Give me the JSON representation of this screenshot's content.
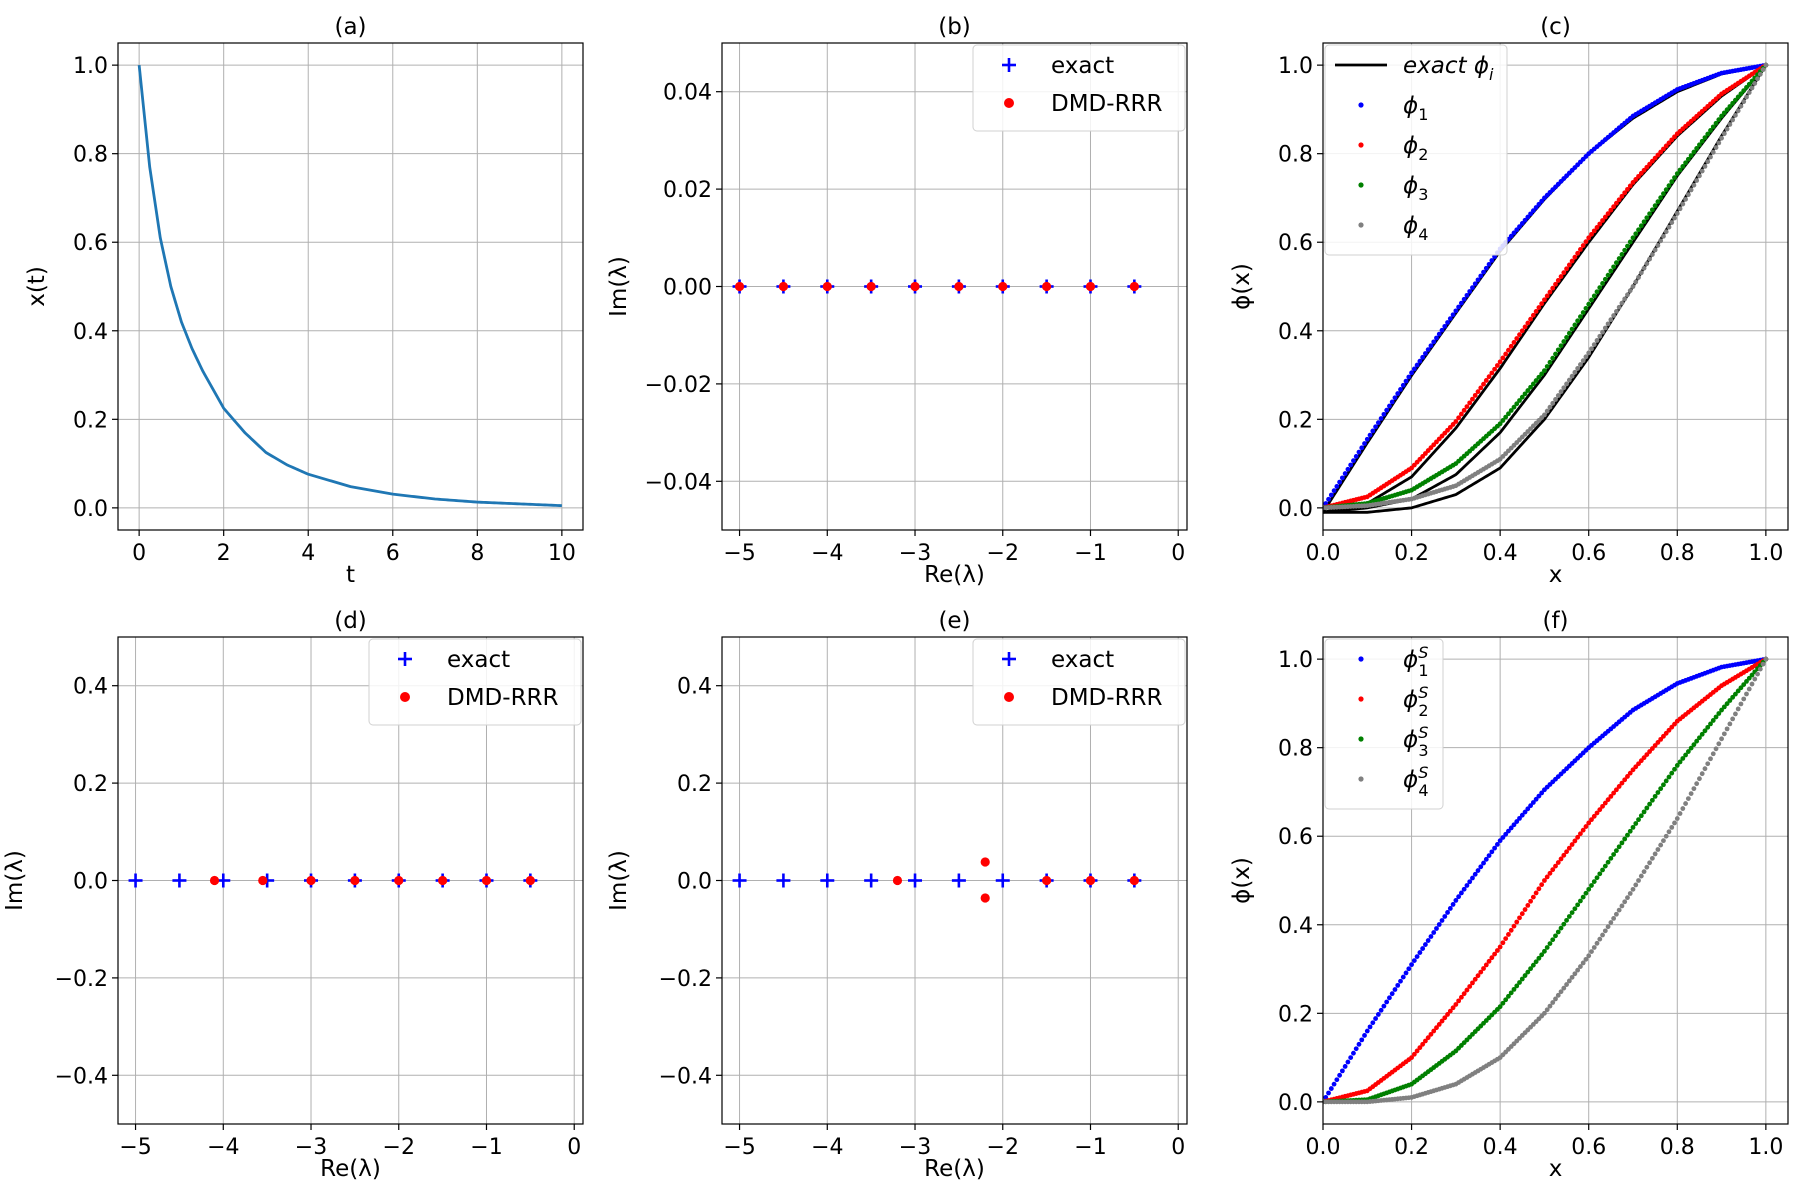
{
  "figure": {
    "colors": {
      "blue": "#0000ff",
      "red": "#ff0000",
      "green": "#008000",
      "gray": "#808080",
      "black": "#000000",
      "line": "#1f77b4"
    }
  },
  "chart_data": [
    {
      "id": "a",
      "type": "line",
      "title": "(a)",
      "xlabel": "t",
      "ylabel": "x(t)",
      "xlim": [
        -0.5,
        10.5
      ],
      "ylim": [
        -0.05,
        1.05
      ],
      "xticks": [
        0,
        2,
        4,
        6,
        8,
        10
      ],
      "xtick_labels": [
        "0",
        "2",
        "4",
        "6",
        "8",
        "10"
      ],
      "yticks": [
        0.0,
        0.2,
        0.4,
        0.6,
        0.8,
        1.0
      ],
      "ytick_labels": [
        "0.0",
        "0.2",
        "0.4",
        "0.6",
        "0.8",
        "1.0"
      ],
      "series": [
        {
          "name": "x(t)",
          "x": [
            0,
            0.25,
            0.5,
            0.75,
            1,
            1.25,
            1.5,
            2,
            2.5,
            3,
            3.5,
            4,
            5,
            6,
            7,
            8,
            9,
            10
          ],
          "y": [
            1.0,
            0.77,
            0.61,
            0.5,
            0.42,
            0.36,
            0.31,
            0.225,
            0.17,
            0.125,
            0.097,
            0.076,
            0.048,
            0.031,
            0.02,
            0.013,
            0.009,
            0.005
          ],
          "color": "#1f77b4"
        }
      ]
    },
    {
      "id": "b",
      "type": "scatter",
      "title": "(b)",
      "xlabel": "Re(λ)",
      "ylabel": "Im(λ)",
      "xlim": [
        -5.2,
        0.1
      ],
      "ylim": [
        -0.05,
        0.05
      ],
      "xticks": [
        -5,
        -4,
        -3,
        -2,
        -1,
        0
      ],
      "xtick_labels": [
        "−5",
        "−4",
        "−3",
        "−2",
        "−1",
        "0"
      ],
      "yticks": [
        -0.04,
        -0.02,
        0.0,
        0.02,
        0.04
      ],
      "ytick_labels": [
        "−0.04",
        "−0.02",
        "0.00",
        "0.02",
        "0.04"
      ],
      "legend": {
        "position": "top-right",
        "entries": [
          {
            "label": "exact",
            "marker": "plus",
            "color": "#0000ff"
          },
          {
            "label": "DMD-RRR",
            "marker": "dot",
            "color": "#ff0000"
          }
        ]
      },
      "series": [
        {
          "name": "exact",
          "marker": "plus",
          "color": "#0000ff",
          "x": [
            -5,
            -4.5,
            -4,
            -3.5,
            -3,
            -2.5,
            -2,
            -1.5,
            -1,
            -0.5
          ],
          "y": [
            0,
            0,
            0,
            0,
            0,
            0,
            0,
            0,
            0,
            0
          ]
        },
        {
          "name": "DMD-RRR",
          "marker": "dot",
          "color": "#ff0000",
          "x": [
            -5,
            -4.5,
            -4,
            -3.5,
            -3,
            -2.5,
            -2,
            -1.5,
            -1,
            -0.5
          ],
          "y": [
            0,
            0,
            0,
            0,
            0,
            0,
            0,
            0,
            0,
            0
          ]
        }
      ]
    },
    {
      "id": "c",
      "type": "line",
      "title": "(c)",
      "xlabel": "x",
      "ylabel": "ϕ(x)",
      "xlim": [
        0.0,
        1.05
      ],
      "ylim": [
        -0.05,
        1.05
      ],
      "xticks": [
        0.0,
        0.2,
        0.4,
        0.6,
        0.8,
        1.0
      ],
      "xtick_labels": [
        "0.0",
        "0.2",
        "0.4",
        "0.6",
        "0.8",
        "1.0"
      ],
      "yticks": [
        0.0,
        0.2,
        0.4,
        0.6,
        0.8,
        1.0
      ],
      "ytick_labels": [
        "0.0",
        "0.2",
        "0.4",
        "0.6",
        "0.8",
        "1.0"
      ],
      "legend": {
        "position": "top-left",
        "entries": [
          {
            "label": "exact ϕ",
            "sub": "i",
            "sup": "",
            "marker": "line",
            "color": "#000000"
          },
          {
            "label": "ϕ",
            "sub": "1",
            "sup": "",
            "marker": "dot",
            "color": "#0000ff"
          },
          {
            "label": "ϕ",
            "sub": "2",
            "sup": "",
            "marker": "dot",
            "color": "#ff0000"
          },
          {
            "label": "ϕ",
            "sub": "3",
            "sup": "",
            "marker": "dot",
            "color": "#008000"
          },
          {
            "label": "ϕ",
            "sub": "4",
            "sup": "",
            "marker": "dot",
            "color": "#808080"
          }
        ]
      },
      "series": [
        {
          "name": "exact φ1",
          "kind": "line",
          "color": "#000000",
          "x": [
            0,
            0.1,
            0.2,
            0.3,
            0.4,
            0.5,
            0.6,
            0.7,
            0.8,
            0.9,
            1.0
          ],
          "y": [
            -0.01,
            0.147,
            0.299,
            0.44,
            0.58,
            0.697,
            0.8,
            0.88,
            0.94,
            0.98,
            1.0
          ]
        },
        {
          "name": "exact φ2",
          "kind": "line",
          "color": "#000000",
          "x": [
            0,
            0.1,
            0.2,
            0.3,
            0.4,
            0.5,
            0.6,
            0.7,
            0.8,
            0.9,
            1.0
          ],
          "y": [
            -0.01,
            0.01,
            0.07,
            0.18,
            0.315,
            0.462,
            0.6,
            0.73,
            0.84,
            0.93,
            1.0
          ]
        },
        {
          "name": "exact φ3",
          "kind": "line",
          "color": "#000000",
          "x": [
            0,
            0.1,
            0.2,
            0.3,
            0.4,
            0.5,
            0.6,
            0.7,
            0.8,
            0.9,
            1.0
          ],
          "y": [
            -0.01,
            0.0,
            0.02,
            0.075,
            0.17,
            0.3,
            0.45,
            0.6,
            0.75,
            0.88,
            1.0
          ]
        },
        {
          "name": "exact φ4",
          "kind": "line",
          "color": "#000000",
          "x": [
            0,
            0.1,
            0.2,
            0.3,
            0.4,
            0.5,
            0.6,
            0.7,
            0.8,
            0.9,
            1.0
          ],
          "y": [
            -0.01,
            -0.01,
            0.0,
            0.03,
            0.09,
            0.2,
            0.34,
            0.5,
            0.67,
            0.84,
            1.0
          ]
        },
        {
          "name": "ϕ1",
          "kind": "dots",
          "color": "#0000ff",
          "x": [
            0,
            0.1,
            0.2,
            0.3,
            0.4,
            0.5,
            0.6,
            0.7,
            0.8,
            0.9,
            1.0
          ],
          "y": [
            0.0,
            0.155,
            0.305,
            0.445,
            0.585,
            0.7,
            0.8,
            0.885,
            0.945,
            0.982,
            1.0
          ]
        },
        {
          "name": "ϕ2",
          "kind": "dots",
          "color": "#ff0000",
          "x": [
            0,
            0.1,
            0.2,
            0.3,
            0.4,
            0.5,
            0.6,
            0.7,
            0.8,
            0.9,
            1.0
          ],
          "y": [
            0.0,
            0.025,
            0.09,
            0.195,
            0.33,
            0.47,
            0.61,
            0.735,
            0.845,
            0.935,
            1.0
          ]
        },
        {
          "name": "ϕ3",
          "kind": "dots",
          "color": "#008000",
          "x": [
            0,
            0.1,
            0.2,
            0.3,
            0.4,
            0.5,
            0.6,
            0.7,
            0.8,
            0.9,
            1.0
          ],
          "y": [
            0.0,
            0.01,
            0.04,
            0.1,
            0.19,
            0.31,
            0.46,
            0.61,
            0.755,
            0.885,
            1.0
          ]
        },
        {
          "name": "ϕ4",
          "kind": "dots",
          "color": "#808080",
          "x": [
            0,
            0.1,
            0.2,
            0.3,
            0.4,
            0.5,
            0.6,
            0.7,
            0.8,
            0.9,
            1.0
          ],
          "y": [
            0.0,
            0.005,
            0.02,
            0.05,
            0.11,
            0.21,
            0.35,
            0.5,
            0.665,
            0.835,
            1.0
          ]
        }
      ]
    },
    {
      "id": "d",
      "type": "scatter",
      "title": "(d)",
      "xlabel": "Re(λ)",
      "ylabel": "Im(λ)",
      "xlim": [
        -5.2,
        0.1
      ],
      "ylim": [
        -0.5,
        0.5
      ],
      "xticks": [
        -5,
        -4,
        -3,
        -2,
        -1,
        0
      ],
      "xtick_labels": [
        "−5",
        "−4",
        "−3",
        "−2",
        "−1",
        "0"
      ],
      "yticks": [
        -0.4,
        -0.2,
        0.0,
        0.2,
        0.4
      ],
      "ytick_labels": [
        "−0.4",
        "−0.2",
        "0.0",
        "0.2",
        "0.4"
      ],
      "legend": {
        "position": "top-right",
        "entries": [
          {
            "label": "exact",
            "marker": "plus",
            "color": "#0000ff"
          },
          {
            "label": "DMD-RRR",
            "marker": "dot",
            "color": "#ff0000"
          }
        ]
      },
      "series": [
        {
          "name": "exact",
          "marker": "plus",
          "color": "#0000ff",
          "x": [
            -5,
            -4.5,
            -4,
            -3.5,
            -3,
            -2.5,
            -2,
            -1.5,
            -1,
            -0.5
          ],
          "y": [
            0,
            0,
            0,
            0,
            0,
            0,
            0,
            0,
            0,
            0
          ]
        },
        {
          "name": "DMD-RRR",
          "marker": "dot",
          "color": "#ff0000",
          "x": [
            -4.1,
            -3.55,
            -3,
            -2.5,
            -2,
            -1.5,
            -1,
            -0.5
          ],
          "y": [
            0,
            0,
            0,
            0,
            0,
            0,
            0,
            0
          ]
        }
      ]
    },
    {
      "id": "e",
      "type": "scatter",
      "title": "(e)",
      "xlabel": "Re(λ)",
      "ylabel": "Im(λ)",
      "xlim": [
        -5.2,
        0.1
      ],
      "ylim": [
        -0.5,
        0.5
      ],
      "xticks": [
        -5,
        -4,
        -3,
        -2,
        -1,
        0
      ],
      "xtick_labels": [
        "−5",
        "−4",
        "−3",
        "−2",
        "−1",
        "0"
      ],
      "yticks": [
        -0.4,
        -0.2,
        0.0,
        0.2,
        0.4
      ],
      "ytick_labels": [
        "−0.4",
        "−0.2",
        "0.0",
        "0.2",
        "0.4"
      ],
      "legend": {
        "position": "top-right",
        "entries": [
          {
            "label": "exact",
            "marker": "plus",
            "color": "#0000ff"
          },
          {
            "label": "DMD-RRR",
            "marker": "dot",
            "color": "#ff0000"
          }
        ]
      },
      "series": [
        {
          "name": "exact",
          "marker": "plus",
          "color": "#0000ff",
          "x": [
            -5,
            -4.5,
            -4,
            -3.5,
            -3,
            -2.5,
            -2,
            -1.5,
            -1,
            -0.5
          ],
          "y": [
            0,
            0,
            0,
            0,
            0,
            0,
            0,
            0,
            0,
            0
          ]
        },
        {
          "name": "DMD-RRR",
          "marker": "dot",
          "color": "#ff0000",
          "x": [
            -3.2,
            -2.2,
            -2.2,
            -1.5,
            -1,
            -0.5
          ],
          "y": [
            0,
            0.038,
            -0.036,
            0,
            0,
            0
          ]
        }
      ]
    },
    {
      "id": "f",
      "type": "scatter",
      "title": "(f)",
      "xlabel": "x",
      "ylabel": "ϕ(x)",
      "xlim": [
        0.0,
        1.05
      ],
      "ylim": [
        -0.05,
        1.05
      ],
      "xticks": [
        0.0,
        0.2,
        0.4,
        0.6,
        0.8,
        1.0
      ],
      "xtick_labels": [
        "0.0",
        "0.2",
        "0.4",
        "0.6",
        "0.8",
        "1.0"
      ],
      "yticks": [
        0.0,
        0.2,
        0.4,
        0.6,
        0.8,
        1.0
      ],
      "ytick_labels": [
        "0.0",
        "0.2",
        "0.4",
        "0.6",
        "0.8",
        "1.0"
      ],
      "legend": {
        "position": "top-left",
        "entries": [
          {
            "label": "ϕ",
            "sub": "1",
            "sup": "S",
            "marker": "dot",
            "color": "#0000ff"
          },
          {
            "label": "ϕ",
            "sub": "2",
            "sup": "S",
            "marker": "dot",
            "color": "#ff0000"
          },
          {
            "label": "ϕ",
            "sub": "3",
            "sup": "S",
            "marker": "dot",
            "color": "#008000"
          },
          {
            "label": "ϕ",
            "sub": "4",
            "sup": "S",
            "marker": "dot",
            "color": "#808080"
          }
        ]
      },
      "series": [
        {
          "name": "ϕ1S",
          "kind": "dots",
          "color": "#0000ff",
          "x": [
            0,
            0.1,
            0.2,
            0.3,
            0.4,
            0.5,
            0.6,
            0.7,
            0.8,
            0.9,
            1.0
          ],
          "y": [
            0.0,
            0.16,
            0.31,
            0.455,
            0.59,
            0.705,
            0.8,
            0.885,
            0.945,
            0.982,
            1.0
          ]
        },
        {
          "name": "ϕ2S",
          "kind": "dots",
          "color": "#ff0000",
          "x": [
            0,
            0.1,
            0.2,
            0.3,
            0.4,
            0.5,
            0.6,
            0.7,
            0.8,
            0.9,
            1.0
          ],
          "y": [
            0.0,
            0.025,
            0.1,
            0.22,
            0.35,
            0.5,
            0.63,
            0.75,
            0.86,
            0.94,
            1.0
          ]
        },
        {
          "name": "ϕ3S",
          "kind": "dots",
          "color": "#008000",
          "x": [
            0,
            0.1,
            0.2,
            0.3,
            0.4,
            0.5,
            0.6,
            0.7,
            0.8,
            0.9,
            1.0
          ],
          "y": [
            0.0,
            0.005,
            0.04,
            0.115,
            0.215,
            0.34,
            0.48,
            0.62,
            0.76,
            0.885,
            1.0
          ]
        },
        {
          "name": "ϕ4S",
          "kind": "dots",
          "color": "#808080",
          "x": [
            0,
            0.1,
            0.2,
            0.3,
            0.4,
            0.5,
            0.6,
            0.7,
            0.8,
            0.9,
            1.0
          ],
          "y": [
            0.0,
            0.0,
            0.01,
            0.04,
            0.1,
            0.2,
            0.33,
            0.48,
            0.64,
            0.82,
            1.0
          ]
        }
      ]
    }
  ]
}
